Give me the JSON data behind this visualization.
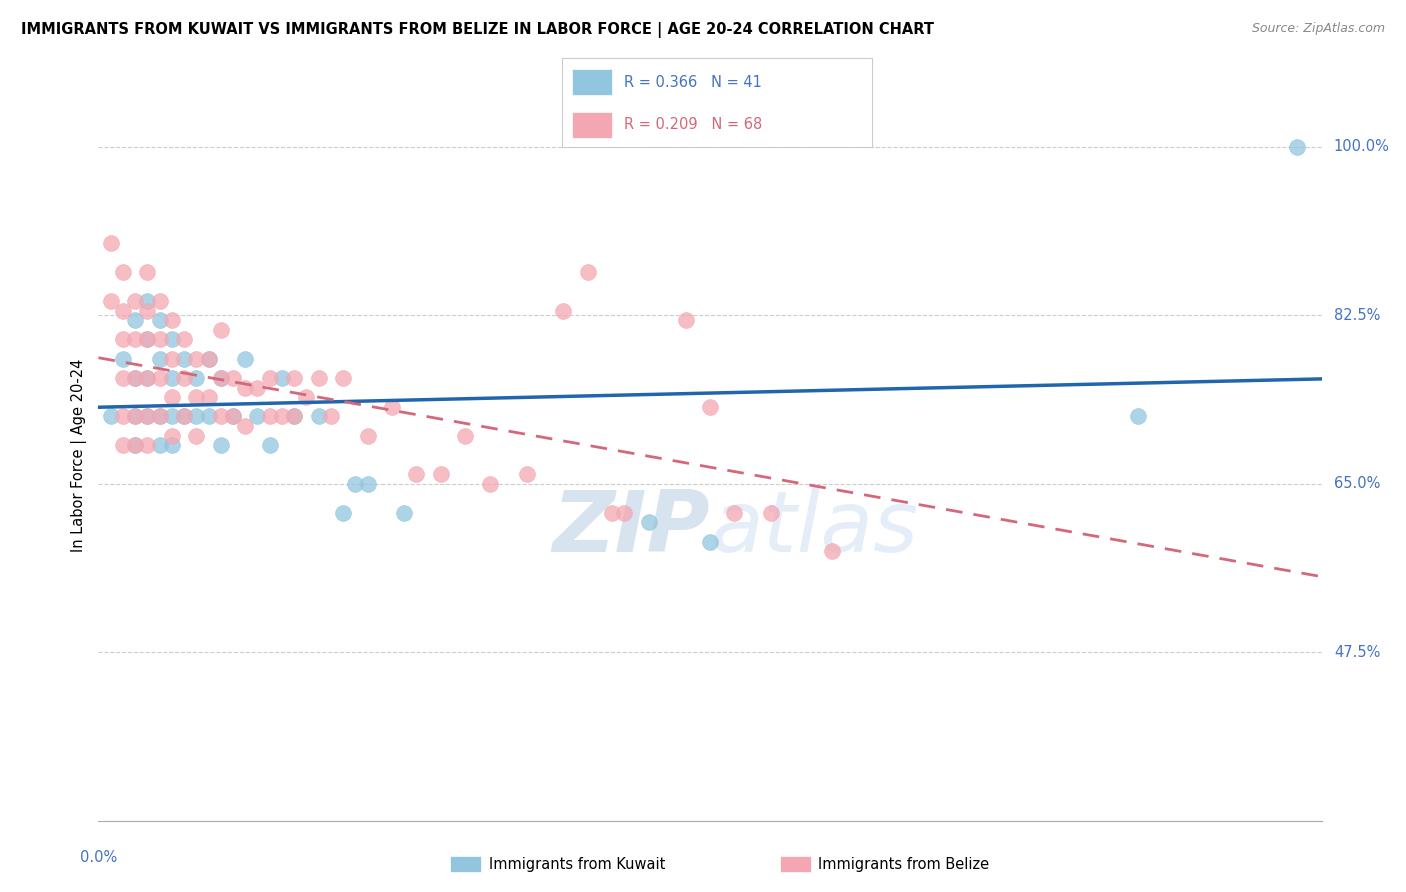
{
  "title": "IMMIGRANTS FROM KUWAIT VS IMMIGRANTS FROM BELIZE IN LABOR FORCE | AGE 20-24 CORRELATION CHART",
  "source": "Source: ZipAtlas.com",
  "ylabel": "In Labor Force | Age 20-24",
  "ytick_labels": [
    "100.0%",
    "82.5%",
    "65.0%",
    "47.5%"
  ],
  "ytick_values": [
    1.0,
    0.825,
    0.65,
    0.475
  ],
  "xmin": 0.0,
  "xmax": 0.1,
  "ymin": 0.3,
  "ymax": 1.06,
  "kuwait_color": "#92c5de",
  "belize_color": "#f4a7b2",
  "kuwait_line_color": "#2166ac",
  "belize_line_color": "#d4687a",
  "watermark_zip": "ZIP",
  "watermark_atlas": "atlas",
  "legend_kuwait_text": "R = 0.366   N = 41",
  "legend_belize_text": "R = 0.209   N = 68",
  "legend_kuwait_color": "#4472c4",
  "legend_belize_color": "#d4687a",
  "kuwait_R": 0.366,
  "belize_R": 0.209,
  "kuwait_points": [
    [
      0.001,
      0.72
    ],
    [
      0.002,
      0.78
    ],
    [
      0.003,
      0.82
    ],
    [
      0.003,
      0.76
    ],
    [
      0.003,
      0.72
    ],
    [
      0.003,
      0.69
    ],
    [
      0.004,
      0.84
    ],
    [
      0.004,
      0.8
    ],
    [
      0.004,
      0.76
    ],
    [
      0.004,
      0.72
    ],
    [
      0.005,
      0.82
    ],
    [
      0.005,
      0.78
    ],
    [
      0.005,
      0.72
    ],
    [
      0.005,
      0.69
    ],
    [
      0.006,
      0.8
    ],
    [
      0.006,
      0.76
    ],
    [
      0.006,
      0.72
    ],
    [
      0.006,
      0.69
    ],
    [
      0.007,
      0.78
    ],
    [
      0.007,
      0.72
    ],
    [
      0.008,
      0.76
    ],
    [
      0.008,
      0.72
    ],
    [
      0.009,
      0.78
    ],
    [
      0.009,
      0.72
    ],
    [
      0.01,
      0.76
    ],
    [
      0.01,
      0.69
    ],
    [
      0.011,
      0.72
    ],
    [
      0.012,
      0.78
    ],
    [
      0.013,
      0.72
    ],
    [
      0.014,
      0.69
    ],
    [
      0.015,
      0.76
    ],
    [
      0.016,
      0.72
    ],
    [
      0.018,
      0.72
    ],
    [
      0.02,
      0.62
    ],
    [
      0.021,
      0.65
    ],
    [
      0.022,
      0.65
    ],
    [
      0.025,
      0.62
    ],
    [
      0.045,
      0.61
    ],
    [
      0.05,
      0.59
    ],
    [
      0.085,
      0.72
    ],
    [
      0.098,
      1.0
    ]
  ],
  "belize_points": [
    [
      0.001,
      0.9
    ],
    [
      0.001,
      0.84
    ],
    [
      0.002,
      0.87
    ],
    [
      0.002,
      0.83
    ],
    [
      0.002,
      0.8
    ],
    [
      0.002,
      0.76
    ],
    [
      0.002,
      0.72
    ],
    [
      0.002,
      0.69
    ],
    [
      0.003,
      0.84
    ],
    [
      0.003,
      0.8
    ],
    [
      0.003,
      0.76
    ],
    [
      0.003,
      0.72
    ],
    [
      0.003,
      0.69
    ],
    [
      0.004,
      0.87
    ],
    [
      0.004,
      0.83
    ],
    [
      0.004,
      0.8
    ],
    [
      0.004,
      0.76
    ],
    [
      0.004,
      0.72
    ],
    [
      0.004,
      0.69
    ],
    [
      0.005,
      0.84
    ],
    [
      0.005,
      0.8
    ],
    [
      0.005,
      0.76
    ],
    [
      0.005,
      0.72
    ],
    [
      0.006,
      0.82
    ],
    [
      0.006,
      0.78
    ],
    [
      0.006,
      0.74
    ],
    [
      0.006,
      0.7
    ],
    [
      0.007,
      0.8
    ],
    [
      0.007,
      0.76
    ],
    [
      0.007,
      0.72
    ],
    [
      0.008,
      0.78
    ],
    [
      0.008,
      0.74
    ],
    [
      0.008,
      0.7
    ],
    [
      0.009,
      0.78
    ],
    [
      0.009,
      0.74
    ],
    [
      0.01,
      0.81
    ],
    [
      0.01,
      0.76
    ],
    [
      0.01,
      0.72
    ],
    [
      0.011,
      0.76
    ],
    [
      0.011,
      0.72
    ],
    [
      0.012,
      0.75
    ],
    [
      0.012,
      0.71
    ],
    [
      0.013,
      0.75
    ],
    [
      0.014,
      0.76
    ],
    [
      0.014,
      0.72
    ],
    [
      0.015,
      0.72
    ],
    [
      0.016,
      0.76
    ],
    [
      0.016,
      0.72
    ],
    [
      0.017,
      0.74
    ],
    [
      0.018,
      0.76
    ],
    [
      0.019,
      0.72
    ],
    [
      0.02,
      0.76
    ],
    [
      0.022,
      0.7
    ],
    [
      0.024,
      0.73
    ],
    [
      0.026,
      0.66
    ],
    [
      0.028,
      0.66
    ],
    [
      0.03,
      0.7
    ],
    [
      0.032,
      0.65
    ],
    [
      0.035,
      0.66
    ],
    [
      0.038,
      0.83
    ],
    [
      0.04,
      0.87
    ],
    [
      0.042,
      0.62
    ],
    [
      0.043,
      0.62
    ],
    [
      0.048,
      0.82
    ],
    [
      0.05,
      0.73
    ],
    [
      0.052,
      0.62
    ],
    [
      0.055,
      0.62
    ],
    [
      0.06,
      0.58
    ]
  ]
}
